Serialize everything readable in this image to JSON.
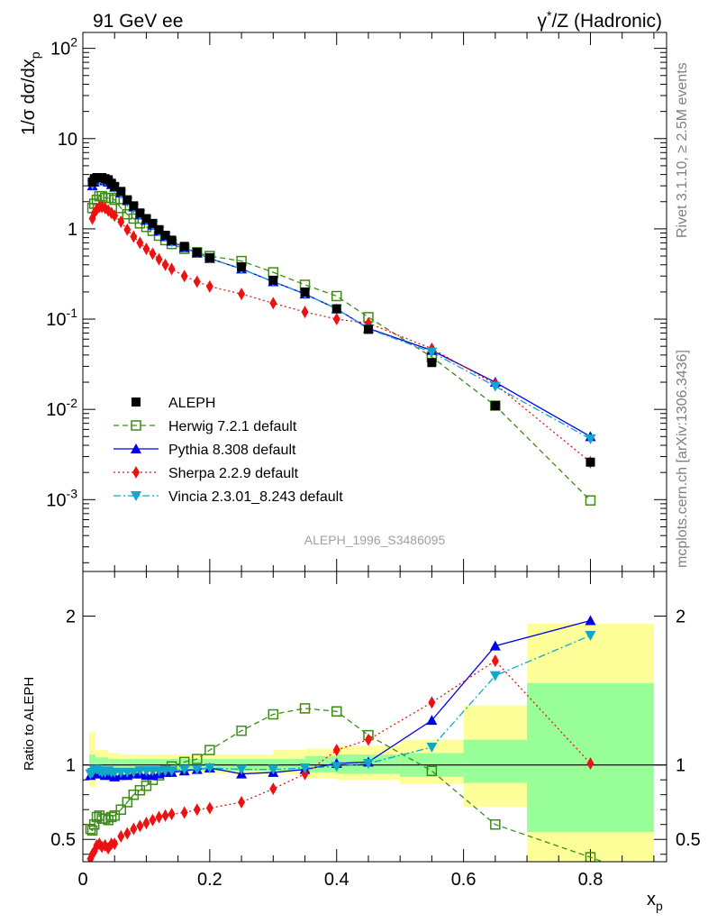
{
  "header": {
    "left": "91 GeV ee",
    "right_pre": "γ",
    "right_sup": "*",
    "right_post": "/Z (Hadronic)"
  },
  "side_labels": {
    "rivet": "Rivet 3.1.10, ≥ 2.5M events",
    "mcplots": "mcplots.cern.ch [arXiv:1306.3436]"
  },
  "analysis_id": "ALEPH_1996_S3486095",
  "colors": {
    "aleph": "#000000",
    "herwig": "#3c8c14",
    "pythia": "#0000e6",
    "sherpa": "#ee1111",
    "vincia": "#11a7c8",
    "band_inner": "#99ff99",
    "band_outer": "#ffff99"
  },
  "chart_data": [
    {
      "type": "scatter",
      "panel": "main",
      "ylabel": "1/σ dσ/dx_p",
      "yscale": "log",
      "ylim": [
        0.00016,
        150
      ],
      "xlim": [
        0,
        0.92
      ],
      "yticklabels": [
        "10^-3",
        "10^-2",
        "10^-1",
        "1",
        "10",
        "10^2"
      ],
      "legend_position": "lower-left",
      "series": [
        {
          "name": "ALEPH",
          "style": "data",
          "x": [
            0.015,
            0.018,
            0.022,
            0.026,
            0.03,
            0.035,
            0.04,
            0.045,
            0.05,
            0.06,
            0.07,
            0.08,
            0.09,
            0.1,
            0.11,
            0.12,
            0.13,
            0.14,
            0.16,
            0.18,
            0.2,
            0.25,
            0.3,
            0.35,
            0.4,
            0.45,
            0.55,
            0.65,
            0.8
          ],
          "y": [
            3.3,
            3.6,
            3.7,
            3.7,
            3.7,
            3.6,
            3.5,
            3.2,
            2.95,
            2.6,
            2.1,
            1.8,
            1.5,
            1.3,
            1.15,
            0.98,
            0.85,
            0.75,
            0.64,
            0.55,
            0.48,
            0.38,
            0.27,
            0.2,
            0.13,
            0.077,
            0.033,
            0.011,
            0.0026
          ]
        },
        {
          "name": "Herwig 7.2.1 default",
          "style": "dashed",
          "x": [
            0.015,
            0.018,
            0.022,
            0.026,
            0.03,
            0.035,
            0.04,
            0.045,
            0.05,
            0.06,
            0.07,
            0.08,
            0.09,
            0.1,
            0.11,
            0.12,
            0.13,
            0.14,
            0.16,
            0.18,
            0.2,
            0.25,
            0.3,
            0.35,
            0.4,
            0.45,
            0.55,
            0.65,
            0.8
          ],
          "y": [
            1.7,
            1.9,
            2.1,
            2.3,
            2.3,
            2.2,
            2.2,
            2.2,
            2.1,
            1.7,
            1.45,
            1.3,
            1.15,
            1.05,
            0.95,
            0.84,
            0.75,
            0.68,
            0.6,
            0.55,
            0.5,
            0.44,
            0.33,
            0.24,
            0.18,
            0.105,
            0.038,
            0.011,
            0.00098
          ]
        },
        {
          "name": "Pythia 8.308 default",
          "style": "solid",
          "x": [
            0.015,
            0.018,
            0.022,
            0.026,
            0.03,
            0.035,
            0.04,
            0.045,
            0.05,
            0.06,
            0.07,
            0.08,
            0.09,
            0.1,
            0.11,
            0.12,
            0.13,
            0.14,
            0.16,
            0.18,
            0.2,
            0.25,
            0.3,
            0.35,
            0.4,
            0.45,
            0.55,
            0.65,
            0.8
          ],
          "y": [
            3.0,
            3.3,
            3.5,
            3.5,
            3.5,
            3.4,
            3.3,
            3.1,
            2.9,
            2.5,
            2.05,
            1.75,
            1.45,
            1.25,
            1.1,
            0.95,
            0.82,
            0.73,
            0.62,
            0.54,
            0.47,
            0.36,
            0.26,
            0.19,
            0.13,
            0.079,
            0.045,
            0.02,
            0.005
          ]
        },
        {
          "name": "Sherpa 2.2.9 default",
          "style": "dotted",
          "x": [
            0.015,
            0.018,
            0.022,
            0.026,
            0.03,
            0.035,
            0.04,
            0.045,
            0.05,
            0.06,
            0.07,
            0.08,
            0.09,
            0.1,
            0.11,
            0.12,
            0.13,
            0.14,
            0.16,
            0.18,
            0.2,
            0.25,
            0.3,
            0.35,
            0.4,
            0.45,
            0.55,
            0.65,
            0.8
          ],
          "y": [
            1.3,
            1.5,
            1.65,
            1.75,
            1.75,
            1.7,
            1.6,
            1.5,
            1.4,
            1.2,
            0.98,
            0.82,
            0.7,
            0.6,
            0.53,
            0.46,
            0.4,
            0.36,
            0.3,
            0.26,
            0.23,
            0.19,
            0.15,
            0.12,
            0.1,
            0.09,
            0.047,
            0.019,
            0.0026
          ]
        },
        {
          "name": "Vincia 2.3.01_8.243 default",
          "style": "dashdot",
          "x": [
            0.015,
            0.018,
            0.022,
            0.026,
            0.03,
            0.035,
            0.04,
            0.045,
            0.05,
            0.06,
            0.07,
            0.08,
            0.09,
            0.1,
            0.11,
            0.12,
            0.13,
            0.14,
            0.16,
            0.18,
            0.2,
            0.25,
            0.3,
            0.35,
            0.4,
            0.45,
            0.55,
            0.65,
            0.8
          ],
          "y": [
            3.1,
            3.4,
            3.5,
            3.5,
            3.5,
            3.4,
            3.3,
            3.05,
            2.85,
            2.45,
            2.0,
            1.7,
            1.45,
            1.25,
            1.1,
            0.94,
            0.82,
            0.72,
            0.62,
            0.54,
            0.47,
            0.36,
            0.26,
            0.19,
            0.13,
            0.078,
            0.043,
            0.018,
            0.0047
          ]
        }
      ]
    },
    {
      "type": "line",
      "panel": "ratio",
      "ylabel": "Ratio to ALEPH",
      "xlabel": "x_p",
      "ylim": [
        0.35,
        2.3
      ],
      "xlim": [
        0,
        0.92
      ],
      "xticks": [
        0,
        0.2,
        0.4,
        0.6,
        0.8
      ],
      "yticks": [
        0.5,
        1,
        2
      ],
      "reference_line": 1,
      "uncertainty_bands": {
        "x_edges": [
          0.01,
          0.02,
          0.04,
          0.06,
          0.08,
          0.1,
          0.14,
          0.2,
          0.3,
          0.35,
          0.4,
          0.5,
          0.6,
          0.7,
          0.9
        ],
        "inner": [
          [
            0.93,
            1.07
          ],
          [
            0.95,
            1.05
          ],
          [
            0.96,
            1.04
          ],
          [
            0.96,
            1.04
          ],
          [
            0.96,
            1.04
          ],
          [
            0.96,
            1.04
          ],
          [
            0.96,
            1.04
          ],
          [
            0.96,
            1.04
          ],
          [
            0.96,
            1.04
          ],
          [
            0.95,
            1.06
          ],
          [
            0.94,
            1.07
          ],
          [
            0.92,
            1.08
          ],
          [
            0.88,
            1.17
          ],
          [
            0.55,
            1.55
          ]
        ],
        "outer": [
          [
            0.85,
            1.22
          ],
          [
            0.92,
            1.1
          ],
          [
            0.93,
            1.08
          ],
          [
            0.94,
            1.07
          ],
          [
            0.94,
            1.07
          ],
          [
            0.94,
            1.07
          ],
          [
            0.94,
            1.07
          ],
          [
            0.94,
            1.07
          ],
          [
            0.94,
            1.1
          ],
          [
            0.91,
            1.11
          ],
          [
            0.9,
            1.13
          ],
          [
            0.87,
            1.17
          ],
          [
            0.72,
            1.4
          ],
          [
            0.33,
            1.95
          ]
        ]
      },
      "series": [
        {
          "name": "Herwig 7.2.1 default",
          "x": [
            0.012,
            0.015,
            0.018,
            0.022,
            0.026,
            0.03,
            0.035,
            0.04,
            0.045,
            0.05,
            0.06,
            0.07,
            0.08,
            0.09,
            0.1,
            0.11,
            0.12,
            0.13,
            0.14,
            0.16,
            0.18,
            0.2,
            0.25,
            0.3,
            0.35,
            0.4,
            0.45,
            0.55,
            0.65,
            0.8,
            0.85
          ],
          "y": [
            0.57,
            0.56,
            0.6,
            0.65,
            0.66,
            0.64,
            0.64,
            0.63,
            0.65,
            0.66,
            0.7,
            0.75,
            0.8,
            0.83,
            0.86,
            0.9,
            0.93,
            0.96,
            0.99,
            1.02,
            1.04,
            1.1,
            1.23,
            1.34,
            1.38,
            1.36,
            1.2,
            0.96,
            0.6,
            0.38,
            0.3
          ]
        },
        {
          "name": "Pythia 8.308 default",
          "x": [
            0.012,
            0.015,
            0.018,
            0.022,
            0.026,
            0.03,
            0.035,
            0.04,
            0.045,
            0.05,
            0.06,
            0.07,
            0.08,
            0.09,
            0.1,
            0.11,
            0.12,
            0.13,
            0.14,
            0.16,
            0.18,
            0.2,
            0.25,
            0.3,
            0.35,
            0.4,
            0.45,
            0.55,
            0.65,
            0.8
          ],
          "y": [
            0.93,
            0.95,
            0.96,
            0.96,
            0.94,
            0.94,
            0.93,
            0.95,
            0.93,
            0.92,
            0.93,
            0.93,
            0.94,
            0.94,
            0.93,
            0.93,
            0.94,
            0.95,
            0.95,
            0.96,
            0.97,
            0.98,
            0.94,
            0.95,
            0.97,
            1.01,
            1.02,
            1.3,
            1.8,
            1.97
          ]
        },
        {
          "name": "Sherpa 2.2.9 default",
          "x": [
            0.012,
            0.015,
            0.018,
            0.022,
            0.026,
            0.03,
            0.035,
            0.04,
            0.045,
            0.05,
            0.06,
            0.07,
            0.08,
            0.09,
            0.1,
            0.11,
            0.12,
            0.13,
            0.14,
            0.16,
            0.18,
            0.2,
            0.25,
            0.3,
            0.35,
            0.4,
            0.45,
            0.55,
            0.65,
            0.8
          ],
          "y": [
            0.37,
            0.4,
            0.42,
            0.46,
            0.47,
            0.45,
            0.46,
            0.44,
            0.47,
            0.47,
            0.52,
            0.54,
            0.57,
            0.59,
            0.61,
            0.63,
            0.65,
            0.66,
            0.67,
            0.68,
            0.7,
            0.71,
            0.75,
            0.84,
            0.94,
            1.1,
            1.17,
            1.42,
            1.7,
            1.01
          ]
        },
        {
          "name": "Vincia 2.3.01_8.243 default",
          "x": [
            0.012,
            0.015,
            0.018,
            0.022,
            0.026,
            0.03,
            0.035,
            0.04,
            0.045,
            0.05,
            0.06,
            0.07,
            0.08,
            0.09,
            0.1,
            0.11,
            0.12,
            0.13,
            0.14,
            0.16,
            0.18,
            0.2,
            0.25,
            0.3,
            0.35,
            0.4,
            0.45,
            0.55,
            0.65,
            0.8
          ],
          "y": [
            0.94,
            0.95,
            0.97,
            0.97,
            0.96,
            0.95,
            0.95,
            0.96,
            0.95,
            0.95,
            0.95,
            0.95,
            0.95,
            0.96,
            0.96,
            0.96,
            0.96,
            0.96,
            0.96,
            0.97,
            0.97,
            0.98,
            0.97,
            0.97,
            0.98,
            0.99,
            1.01,
            1.12,
            1.6,
            1.87
          ]
        }
      ]
    }
  ]
}
